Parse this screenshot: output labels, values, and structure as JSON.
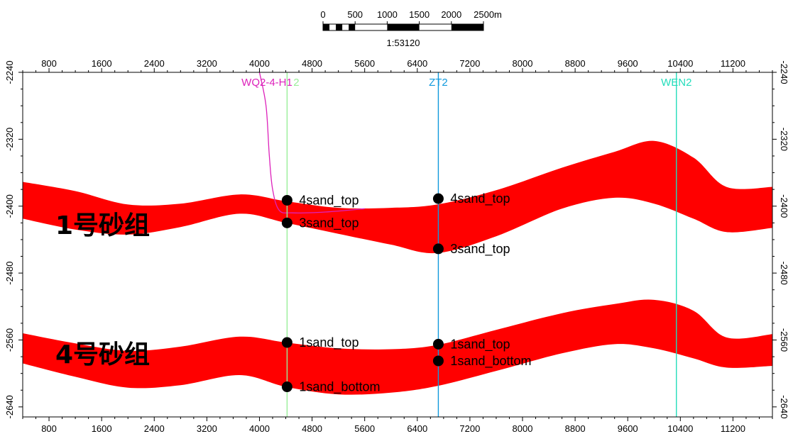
{
  "chart_data": {
    "type": "area",
    "title": "",
    "xlabel": "",
    "ylabel": "",
    "xlim": [
      400,
      11800
    ],
    "ylim": [
      -2240,
      -2652
    ],
    "x_ticks": [
      800,
      1600,
      2400,
      3200,
      4000,
      4800,
      5600,
      6400,
      7200,
      8000,
      8800,
      9600,
      10400,
      11200
    ],
    "y_ticks": [
      -2240,
      -2320,
      -2400,
      -2480,
      -2560,
      -2640
    ],
    "grid": false,
    "scale_bar": {
      "ticks": [
        "0",
        "500",
        "1000",
        "1500",
        "2000",
        "2500m"
      ],
      "ratio": "1:53120"
    },
    "sand_colors": {
      "fill": "#ff0000"
    },
    "sand_groups": [
      {
        "name": "1号砂组",
        "top": [
          [
            400,
            -2371
          ],
          [
            1200,
            -2382
          ],
          [
            2000,
            -2398
          ],
          [
            2800,
            -2397
          ],
          [
            3700,
            -2386
          ],
          [
            4400,
            -2394
          ],
          [
            5200,
            -2402
          ],
          [
            6000,
            -2402
          ],
          [
            6700,
            -2398
          ],
          [
            7600,
            -2381
          ],
          [
            8600,
            -2354
          ],
          [
            9400,
            -2335
          ],
          [
            10000,
            -2322
          ],
          [
            10600,
            -2342
          ],
          [
            11100,
            -2377
          ],
          [
            11800,
            -2377
          ]
        ],
        "bottom": [
          [
            400,
            -2415
          ],
          [
            1200,
            -2428
          ],
          [
            2000,
            -2434
          ],
          [
            2800,
            -2425
          ],
          [
            3700,
            -2409
          ],
          [
            4400,
            -2420
          ],
          [
            5200,
            -2433
          ],
          [
            6000,
            -2446
          ],
          [
            6700,
            -2456
          ],
          [
            7600,
            -2436
          ],
          [
            8600,
            -2403
          ],
          [
            9400,
            -2390
          ],
          [
            10000,
            -2397
          ],
          [
            10600,
            -2415
          ],
          [
            11100,
            -2431
          ],
          [
            11800,
            -2426
          ]
        ]
      },
      {
        "name": "4号砂组",
        "top": [
          [
            400,
            -2552
          ],
          [
            1200,
            -2564
          ],
          [
            2000,
            -2573
          ],
          [
            2800,
            -2568
          ],
          [
            3700,
            -2556
          ],
          [
            4400,
            -2563
          ],
          [
            5200,
            -2570
          ],
          [
            6000,
            -2571
          ],
          [
            6700,
            -2566
          ],
          [
            7600,
            -2548
          ],
          [
            8600,
            -2528
          ],
          [
            9400,
            -2517
          ],
          [
            10000,
            -2512
          ],
          [
            10600,
            -2525
          ],
          [
            11100,
            -2557
          ],
          [
            11800,
            -2553
          ]
        ],
        "bottom": [
          [
            400,
            -2588
          ],
          [
            1200,
            -2604
          ],
          [
            2000,
            -2617
          ],
          [
            2800,
            -2614
          ],
          [
            3700,
            -2602
          ],
          [
            4400,
            -2616
          ],
          [
            5200,
            -2625
          ],
          [
            6000,
            -2623
          ],
          [
            6700,
            -2615
          ],
          [
            7600,
            -2597
          ],
          [
            8600,
            -2576
          ],
          [
            9400,
            -2565
          ],
          [
            10000,
            -2570
          ],
          [
            10600,
            -2582
          ],
          [
            11100,
            -2593
          ],
          [
            11800,
            -2591
          ]
        ]
      }
    ],
    "wells": [
      {
        "name": "WQ2-4-H1",
        "color": "#dd22bb",
        "type": "deviated",
        "trajectory": [
          [
            4000,
            -2240
          ],
          [
            4100,
            -2280
          ],
          [
            4150,
            -2340
          ],
          [
            4200,
            -2380
          ],
          [
            4300,
            -2405
          ],
          [
            4500,
            -2408
          ],
          [
            5000,
            -2407
          ],
          [
            5600,
            -2403
          ]
        ]
      },
      {
        "name": "2",
        "color": "#99ee99",
        "type": "vertical",
        "x": 4420
      },
      {
        "name": "ZT2",
        "color": "#1199dd",
        "type": "vertical",
        "x": 6720
      },
      {
        "name": "WEN2",
        "color": "#22ddbb",
        "type": "vertical",
        "x": 10340
      }
    ],
    "markers": [
      {
        "label": "4sand_top",
        "x": 4420,
        "y": -2393
      },
      {
        "label": "3sand_top",
        "x": 4420,
        "y": -2420
      },
      {
        "label": "1sand_top",
        "x": 4420,
        "y": -2563
      },
      {
        "label": "1sand_bottom",
        "x": 4420,
        "y": -2616
      },
      {
        "label": "4sand_top",
        "x": 6720,
        "y": -2391
      },
      {
        "label": "3sand_top",
        "x": 6720,
        "y": -2451
      },
      {
        "label": "1sand_top",
        "x": 6720,
        "y": -2565
      },
      {
        "label": "1sand_bottom",
        "x": 6720,
        "y": -2585
      }
    ]
  }
}
